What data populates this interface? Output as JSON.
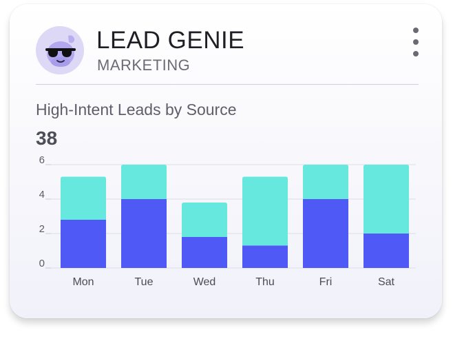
{
  "header": {
    "title": "LEAD GENIE",
    "subtitle": "MARKETING",
    "avatar_icon": "genie-sunglasses-icon",
    "menu_icon": "more-vertical-icon"
  },
  "widget": {
    "title": "High-Intent Leads by Source",
    "total": "38"
  },
  "chart_data": {
    "type": "bar",
    "stacked": true,
    "categories": [
      "Mon",
      "Tue",
      "Wed",
      "Thu",
      "Fri",
      "Sat"
    ],
    "series": [
      {
        "values": [
          2.8,
          4,
          1.8,
          1.3,
          4,
          2
        ],
        "color": "#4f5af6"
      },
      {
        "values": [
          2.5,
          2,
          2,
          4,
          2,
          4
        ],
        "color": "#66e8df"
      }
    ],
    "yticks": [
      0,
      2,
      4,
      6
    ],
    "ylim": [
      0,
      6
    ],
    "grid": true
  }
}
